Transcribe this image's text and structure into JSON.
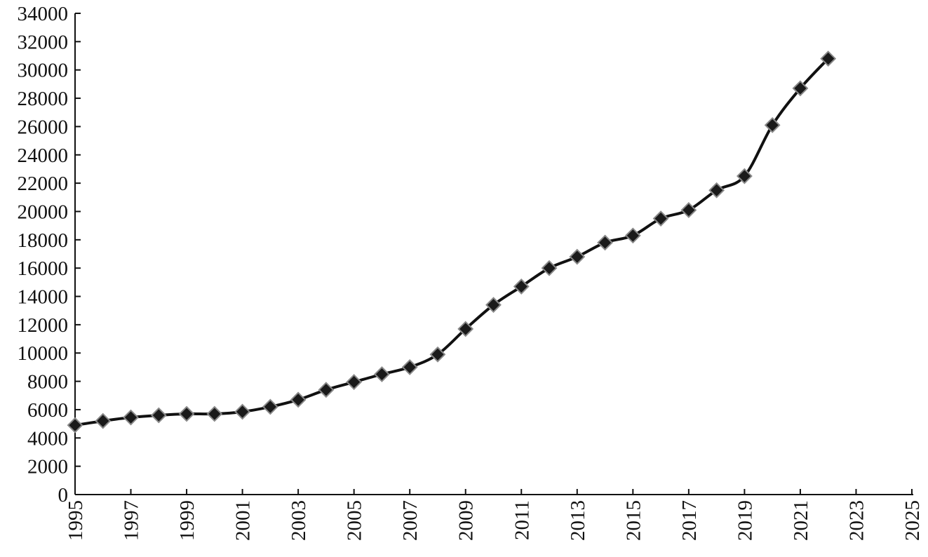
{
  "chart_data": {
    "type": "line",
    "x": [
      1995,
      1996,
      1997,
      1998,
      1999,
      2000,
      2001,
      2002,
      2003,
      2004,
      2005,
      2006,
      2007,
      2008,
      2009,
      2010,
      2011,
      2012,
      2013,
      2014,
      2015,
      2016,
      2017,
      2018,
      2019,
      2020,
      2021,
      2022
    ],
    "values": [
      4900,
      5200,
      5450,
      5600,
      5700,
      5700,
      5850,
      6200,
      6700,
      7400,
      7950,
      8500,
      9000,
      9900,
      11700,
      13400,
      14700,
      16000,
      16800,
      17800,
      18300,
      19500,
      20100,
      21500,
      22500,
      26100,
      28700,
      30800
    ],
    "color": "#111111",
    "marker_color": "#1a1a1a",
    "xlim": [
      1995,
      2025
    ],
    "xticks": [
      1995,
      1997,
      1999,
      2001,
      2003,
      2005,
      2007,
      2009,
      2011,
      2013,
      2015,
      2017,
      2019,
      2021,
      2023,
      2025
    ],
    "ylim": [
      0,
      34000
    ],
    "yticks": [
      0,
      2000,
      4000,
      6000,
      8000,
      10000,
      12000,
      14000,
      16000,
      18000,
      20000,
      22000,
      24000,
      26000,
      28000,
      30000,
      32000,
      34000
    ],
    "grid": false
  }
}
